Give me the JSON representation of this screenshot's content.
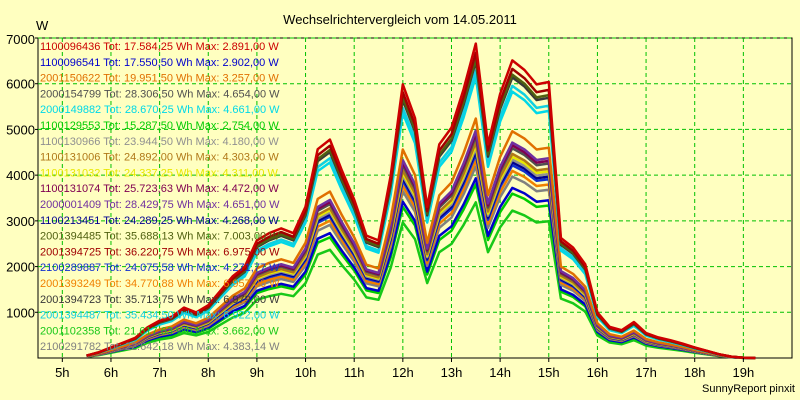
{
  "chart_data": {
    "type": "line",
    "title": "Wechselrichtervergleich vom 14.05.2011",
    "ylabel": "W",
    "xlabel": "",
    "credit": "SunnyReport pinxit",
    "ylim": [
      0,
      7000
    ],
    "xlim": [
      4.5,
      20.0
    ],
    "grid": true,
    "legend_placement": "left",
    "y_ticks": [
      "1000",
      "2000",
      "3000",
      "4000",
      "5000",
      "6000",
      "7000"
    ],
    "x_ticks": [
      {
        "v": 5,
        "label": "5h"
      },
      {
        "v": 6,
        "label": "6h"
      },
      {
        "v": 7,
        "label": "7h"
      },
      {
        "v": 8,
        "label": "8h"
      },
      {
        "v": 9,
        "label": "9h"
      },
      {
        "v": 10,
        "label": "10h"
      },
      {
        "v": 11,
        "label": "11h"
      },
      {
        "v": 12,
        "label": "12h"
      },
      {
        "v": 13,
        "label": "13h"
      },
      {
        "v": 14,
        "label": "14h"
      },
      {
        "v": 15,
        "label": "15h"
      },
      {
        "v": 16,
        "label": "16h"
      },
      {
        "v": 17,
        "label": "17h"
      },
      {
        "v": 18,
        "label": "18h"
      },
      {
        "v": 19,
        "label": "19h"
      }
    ],
    "x": [
      5.5,
      5.75,
      6.0,
      6.25,
      6.5,
      6.75,
      7.0,
      7.25,
      7.5,
      7.75,
      8.0,
      8.25,
      8.5,
      8.75,
      9.0,
      9.25,
      9.5,
      9.75,
      10.0,
      10.25,
      10.5,
      10.75,
      11.0,
      11.25,
      11.5,
      11.75,
      12.0,
      12.25,
      12.5,
      12.75,
      13.0,
      13.25,
      13.5,
      13.75,
      14.0,
      14.25,
      14.5,
      14.75,
      15.0,
      15.25,
      15.5,
      15.75,
      16.0,
      16.25,
      16.5,
      16.75,
      17.0,
      17.25,
      17.5,
      17.75,
      18.0,
      18.25,
      18.5,
      18.75,
      19.0,
      19.25
    ],
    "base_profile": [
      50,
      120,
      220,
      320,
      420,
      640,
      780,
      860,
      1050,
      950,
      1100,
      1400,
      1700,
      1900,
      2450,
      2600,
      2700,
      2600,
      3150,
      4350,
      4550,
      3900,
      3300,
      2550,
      2450,
      3800,
      5700,
      5000,
      3150,
      4450,
      4800,
      5600,
      6550,
      4450,
      5500,
      6200,
      6000,
      5700,
      5750,
      2500,
      2300,
      1950,
      950,
      650,
      580,
      750,
      520,
      430,
      370,
      300,
      220,
      150,
      80,
      30,
      5,
      0
    ],
    "series": [
      {
        "name": "1100096436",
        "label": "1100096436 Tot: 17.584,25 Wh Max: 2.891,00 W",
        "color": "#cc0000",
        "scale": 1.05
      },
      {
        "name": "1100096541",
        "label": "1100096541 Tot: 17.550,50 Wh Max: 2.902,00 W",
        "color": "#0000cc",
        "scale": 0.6
      },
      {
        "name": "2001150622",
        "label": "2001150622 Tot: 19.951,50 Wh Max: 3.257,00 W",
        "color": "#e07000",
        "scale": 0.8
      },
      {
        "name": "2000154799",
        "label": "2000154799 Tot: 28.306,50 Wh Max: 4.654,00 W",
        "color": "#505050",
        "scale": 0.74
      },
      {
        "name": "2000149882",
        "label": "2000149882 Tot: 28.670,25 Wh Max: 4.661,00 W",
        "color": "#00d8e8",
        "scale": 0.94
      },
      {
        "name": "1100129553",
        "label": "1100129553 Tot: 15.287,50 Wh Max: 2.754,00 W",
        "color": "#00cc00",
        "scale": 0.58
      },
      {
        "name": "1100130966",
        "label": "1100130966 Tot: 23.944,50 Wh Max: 4.180,00 W",
        "color": "#909090",
        "scale": 0.7
      },
      {
        "name": "1100131006",
        "label": "1100131006 Tot: 24.892,00 Wh Max: 4.303,00 W",
        "color": "#b07818",
        "scale": 0.72
      },
      {
        "name": "1100131032",
        "label": "1100131032 Tot: 24.337,25 Wh Max: 4.311,00 W",
        "color": "#e8e800",
        "scale": 0.71
      },
      {
        "name": "1100131074",
        "label": "1100131074 Tot: 25.723,63 Wh Max: 4.472,00 W",
        "color": "#800050",
        "scale": 0.75
      },
      {
        "name": "2000001409",
        "label": "2000001409 Tot: 28.429,75 Wh Max: 4.651,00 W",
        "color": "#7030a0",
        "scale": 0.76
      },
      {
        "name": "1100213451",
        "label": "1100213451 Tot: 24.289,25 Wh Max: 4.268,00 W",
        "color": "#000090",
        "scale": 0.69
      },
      {
        "name": "2001394485",
        "label": "2001394485 Tot: 35.688,13 Wh Max: 7.003,00 W",
        "color": "#506010",
        "scale": 1.0
      },
      {
        "name": "2001394725",
        "label": "2001394725 Tot: 36.220,75 Wh Max: 6.975,00 W",
        "color": "#a00000",
        "scale": 1.02
      },
      {
        "name": "2100289887",
        "label": "2100289887 Tot: 24.075,58 Wh Max: 4.271,77 W",
        "color": "#1030d0",
        "scale": 0.68
      },
      {
        "name": "2001393249",
        "label": "2001393249 Tot: 34.770,88 Wh Max: 6.957,00 W",
        "color": "#f08000",
        "scale": 0.66
      },
      {
        "name": "2001394723",
        "label": "2001394723 Tot: 35.713,75 Wh Max: 6.979,00 W",
        "color": "#383838",
        "scale": 0.99
      },
      {
        "name": "2001394487",
        "label": "2001394487 Tot: 35.434,50 Wh Max: 6.922,00 W",
        "color": "#10d0e0",
        "scale": 0.96
      },
      {
        "name": "2001102358",
        "label": "2001102358 Tot: 21.617,63 Wh Max: 3.662,00 W",
        "color": "#18c818",
        "scale": 0.52
      },
      {
        "name": "2100291782",
        "label": "2100291782 Tot: 22.642,18 Wh Max: 4.383,14 W",
        "color": "#808080",
        "scale": 0.64
      }
    ]
  }
}
